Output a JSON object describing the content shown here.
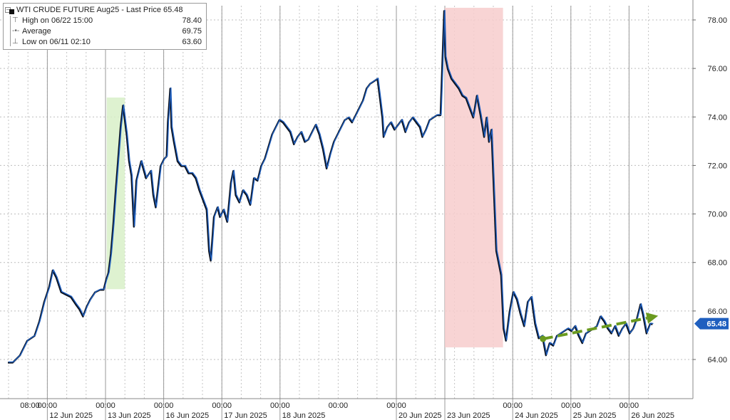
{
  "legend": {
    "title": "WTI CRUDE FUTURE Aug25 - Last Price 65.48",
    "rows": [
      {
        "label": "High on 06/22 15:00",
        "value": "78.40",
        "icon": "high-marker-icon"
      },
      {
        "label": "Average",
        "value": "69.75",
        "icon": "average-marker-icon"
      },
      {
        "label": "Low on 06/11 02:10",
        "value": "63.60",
        "icon": "low-marker-icon"
      }
    ]
  },
  "last_price_tag": "65.48",
  "chart_data": {
    "type": "line",
    "series": [
      {
        "name": "WTI CRUDE FUTURE Aug25",
        "color": "#1f5fbf",
        "points": [
          [
            0,
            63.9
          ],
          [
            2,
            63.9
          ],
          [
            5,
            64.2
          ],
          [
            8,
            64.8
          ],
          [
            11,
            65.0
          ],
          [
            13,
            65.6
          ],
          [
            15,
            66.4
          ],
          [
            17,
            67.0
          ],
          [
            18.5,
            67.7
          ],
          [
            20,
            67.4
          ],
          [
            22,
            66.8
          ],
          [
            24,
            66.7
          ],
          [
            26,
            66.6
          ],
          [
            28,
            66.3
          ],
          [
            29.5,
            66.1
          ],
          [
            31,
            65.8
          ],
          [
            32.5,
            66.2
          ],
          [
            34,
            66.5
          ],
          [
            36,
            66.8
          ],
          [
            38,
            66.9
          ],
          [
            39.5,
            66.9
          ],
          [
            40.5,
            67.3
          ],
          [
            41.5,
            67.6
          ],
          [
            42.5,
            68.4
          ],
          [
            43.5,
            69.6
          ],
          [
            44.5,
            71.0
          ],
          [
            45.5,
            72.3
          ],
          [
            46.5,
            73.6
          ],
          [
            47.5,
            74.5
          ],
          [
            49,
            73.3
          ],
          [
            50,
            72.2
          ],
          [
            51,
            71.6
          ],
          [
            52,
            69.5
          ],
          [
            53,
            71.4
          ],
          [
            55,
            72.2
          ],
          [
            57,
            71.5
          ],
          [
            59,
            71.8
          ],
          [
            60,
            70.8
          ],
          [
            61,
            70.3
          ],
          [
            63,
            72.0
          ],
          [
            64.5,
            72.3
          ],
          [
            65.5,
            72.4
          ],
          [
            66,
            73.8
          ],
          [
            67,
            75.2
          ],
          [
            67.5,
            73.6
          ],
          [
            68.5,
            73.0
          ],
          [
            70,
            72.2
          ],
          [
            71.5,
            72.0
          ],
          [
            73,
            72.0
          ],
          [
            74.5,
            71.7
          ],
          [
            76,
            71.7
          ],
          [
            77.5,
            71.5
          ],
          [
            79,
            71.0
          ],
          [
            80.5,
            70.6
          ],
          [
            82,
            70.2
          ],
          [
            83,
            68.5
          ],
          [
            83.7,
            68.1
          ],
          [
            85,
            69.9
          ],
          [
            86.5,
            70.3
          ],
          [
            87.5,
            69.9
          ],
          [
            89,
            70.2
          ],
          [
            90.5,
            69.7
          ],
          [
            92,
            71.3
          ],
          [
            93,
            71.8
          ],
          [
            94,
            70.8
          ],
          [
            95.5,
            70.5
          ],
          [
            97,
            71.0
          ],
          [
            98.5,
            70.8
          ],
          [
            100,
            70.4
          ],
          [
            101.5,
            71.5
          ],
          [
            103,
            71.4
          ],
          [
            104.5,
            72.0
          ],
          [
            106,
            72.3
          ],
          [
            107.5,
            72.8
          ],
          [
            109,
            73.3
          ],
          [
            110.5,
            73.6
          ],
          [
            112,
            73.9
          ],
          [
            113.5,
            73.8
          ],
          [
            115,
            73.6
          ],
          [
            116.5,
            73.4
          ],
          [
            118,
            72.9
          ],
          [
            119.5,
            73.2
          ],
          [
            121,
            73.4
          ],
          [
            122.5,
            73.0
          ],
          [
            124,
            73.1
          ],
          [
            125.5,
            73.4
          ],
          [
            127,
            73.7
          ],
          [
            128.5,
            73.3
          ],
          [
            130,
            72.7
          ],
          [
            131.5,
            71.9
          ],
          [
            133,
            72.5
          ],
          [
            134.5,
            73.0
          ],
          [
            136,
            73.3
          ],
          [
            137.5,
            73.6
          ],
          [
            139,
            73.9
          ],
          [
            140.5,
            74.0
          ],
          [
            142,
            73.8
          ],
          [
            143.5,
            74.1
          ],
          [
            145,
            74.4
          ],
          [
            146.5,
            74.7
          ],
          [
            148,
            75.2
          ],
          [
            149.5,
            75.4
          ],
          [
            151,
            75.5
          ],
          [
            152.5,
            75.6
          ],
          [
            153.5,
            74.8
          ],
          [
            154.5,
            74.0
          ],
          [
            155,
            73.2
          ],
          [
            156.5,
            73.6
          ],
          [
            158,
            73.8
          ],
          [
            159.5,
            73.5
          ],
          [
            161,
            73.7
          ],
          [
            162.5,
            73.9
          ],
          [
            164,
            73.4
          ],
          [
            165.5,
            73.8
          ],
          [
            167,
            74.0
          ],
          [
            168.5,
            73.8
          ],
          [
            170,
            73.6
          ],
          [
            171,
            73.2
          ],
          [
            172.5,
            73.5
          ],
          [
            174,
            73.9
          ],
          [
            175.5,
            74.0
          ],
          [
            177,
            74.1
          ],
          [
            178.5,
            74.1
          ],
          [
            180,
            78.4
          ],
          [
            180.5,
            76.5
          ],
          [
            181.5,
            76.0
          ],
          [
            183,
            75.6
          ],
          [
            184.5,
            75.4
          ],
          [
            186,
            75.2
          ],
          [
            187.5,
            74.9
          ],
          [
            189,
            74.8
          ],
          [
            190.5,
            74.4
          ],
          [
            192,
            74.0
          ],
          [
            193.5,
            74.9
          ],
          [
            195,
            74.1
          ],
          [
            196.5,
            73.2
          ],
          [
            197.5,
            74.0
          ],
          [
            198.5,
            73.0
          ],
          [
            199.5,
            73.5
          ],
          [
            200.5,
            71.0
          ],
          [
            201.5,
            68.5
          ],
          [
            202.5,
            68.0
          ],
          [
            203.5,
            67.5
          ],
          [
            204.5,
            65.3
          ],
          [
            205.5,
            64.8
          ],
          [
            207,
            66.0
          ],
          [
            208.5,
            66.8
          ],
          [
            210,
            66.5
          ],
          [
            211.5,
            65.9
          ],
          [
            213,
            65.4
          ],
          [
            214.5,
            66.4
          ],
          [
            216,
            66.6
          ],
          [
            217.5,
            65.5
          ],
          [
            219,
            64.9
          ],
          [
            220.5,
            65.0
          ],
          [
            222,
            64.2
          ],
          [
            223.5,
            64.7
          ],
          [
            225,
            64.6
          ],
          [
            226.5,
            65.0
          ],
          [
            228,
            65.1
          ],
          [
            229.5,
            65.2
          ],
          [
            231,
            65.3
          ],
          [
            232.5,
            65.2
          ],
          [
            234,
            65.4
          ],
          [
            235.5,
            65.0
          ],
          [
            237,
            64.7
          ],
          [
            238.5,
            65.1
          ],
          [
            240,
            65.2
          ],
          [
            241.5,
            65.3
          ],
          [
            243,
            65.4
          ],
          [
            244.5,
            65.8
          ],
          [
            246,
            65.6
          ],
          [
            247.5,
            65.3
          ],
          [
            249,
            65.1
          ],
          [
            250.5,
            65.4
          ],
          [
            252,
            65.0
          ],
          [
            253.5,
            65.3
          ],
          [
            255,
            65.5
          ],
          [
            256.5,
            65.1
          ],
          [
            258,
            65.3
          ],
          [
            259.5,
            65.7
          ],
          [
            261,
            66.3
          ],
          [
            262,
            65.9
          ],
          [
            263.5,
            65.1
          ],
          [
            265,
            65.5
          ],
          [
            266,
            65.48
          ]
        ]
      }
    ],
    "x_unit": "hours since 11 Jun 2025 08:00",
    "ylim": [
      62.6,
      78.7
    ],
    "y_ticks": [
      "64.00",
      "66.00",
      "68.00",
      "70.00",
      "72.00",
      "74.00",
      "76.00",
      "78.00"
    ],
    "x_ticks": [
      {
        "label": "08:00",
        "at": 0
      },
      {
        "label": "00:00",
        "at": 16
      },
      {
        "label": "00:00",
        "at": 40
      },
      {
        "label": "00:00",
        "at": 64
      },
      {
        "label": "00:00",
        "at": 88
      },
      {
        "label": "00:00",
        "at": 112
      },
      {
        "label": "00:00",
        "at": 136
      },
      {
        "label": "00:00",
        "at": 160
      },
      {
        "label": "00:00",
        "at": 208
      },
      {
        "label": "00:00",
        "at": 232
      },
      {
        "label": "00:00",
        "at": 256
      }
    ],
    "date_labels": [
      {
        "label": "12 Jun 2025",
        "at": 16
      },
      {
        "label": "13 Jun 2025",
        "at": 40
      },
      {
        "label": "16 Jun 2025",
        "at": 64
      },
      {
        "label": "17 Jun 2025",
        "at": 88
      },
      {
        "label": "18 Jun 2025",
        "at": 112
      },
      {
        "label": "20 Jun 2025",
        "at": 160
      },
      {
        "label": "23 Jun 2025",
        "at": 180
      },
      {
        "label": "24 Jun 2025",
        "at": 208
      },
      {
        "label": "25 Jun 2025",
        "at": 232
      },
      {
        "label": "26 Jun 2025",
        "at": 256
      }
    ],
    "highlights": [
      {
        "from_x": 40.5,
        "to_x": 48,
        "y_from": 66.9,
        "y_to": 74.8,
        "color": "#d8f0c8"
      },
      {
        "from_x": 180,
        "to_x": 204,
        "y_from": 64.5,
        "y_to": 78.5,
        "color": "#f7cccc"
      }
    ],
    "trend_arrow": {
      "from": [
        220.5,
        64.85
      ],
      "to": [
        268,
        65.8
      ],
      "color": "#6a9a1f"
    },
    "last_value": 65.48,
    "grid": true,
    "grid_style": "dotted vertical and horizontal, solid session separators",
    "last_price_color": "#1f5fbf"
  }
}
